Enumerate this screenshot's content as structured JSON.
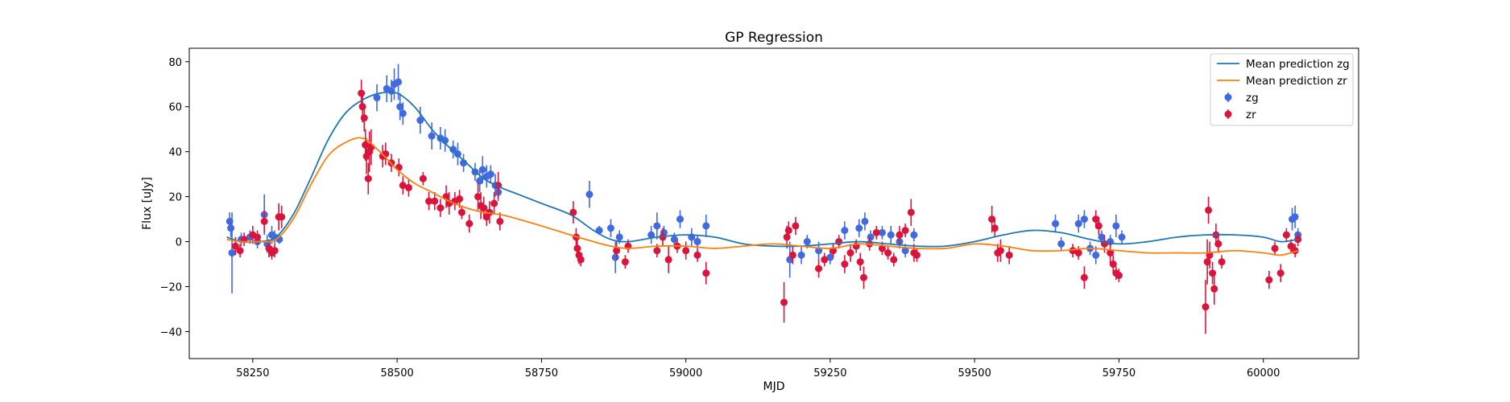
{
  "chart_data": {
    "type": "scatter",
    "title": "GP Regression",
    "xlabel": "MJD",
    "ylabel": "Flux [uJy]",
    "xlim": [
      58140,
      60165
    ],
    "ylim": [
      -52,
      86
    ],
    "xticks": [
      58250,
      58500,
      58750,
      59000,
      59250,
      59500,
      59750,
      60000
    ],
    "yticks": [
      -40,
      -20,
      0,
      20,
      40,
      60,
      80
    ],
    "grid": false,
    "legend_position": "top-right",
    "lines": [
      {
        "name": "Mean prediction zg",
        "color": "#1f77b4",
        "x": [
          58205,
          58230,
          58260,
          58290,
          58320,
          58350,
          58380,
          58410,
          58440,
          58470,
          58500,
          58530,
          58560,
          58590,
          58620,
          58650,
          58680,
          58710,
          58750,
          58800,
          58840,
          58870,
          58900,
          58950,
          59000,
          59050,
          59100,
          59150,
          59200,
          59250,
          59300,
          59350,
          59400,
          59450,
          59500,
          59550,
          59600,
          59650,
          59700,
          59750,
          59800,
          59850,
          59900,
          59950,
          60000,
          60030,
          60060
        ],
        "y": [
          2,
          0,
          0,
          2,
          12,
          28,
          45,
          57,
          63,
          66,
          66,
          60,
          50,
          42,
          35,
          28,
          24,
          21,
          17,
          12,
          5,
          1,
          0,
          2,
          3,
          2,
          -1,
          -2,
          -2,
          -1,
          0,
          -1,
          -2,
          -2,
          0,
          3,
          5,
          4,
          1,
          -1,
          0,
          2,
          3,
          3,
          2,
          0,
          1
        ]
      },
      {
        "name": "Mean prediction zr",
        "color": "#ff7f0e",
        "x": [
          58205,
          58230,
          58260,
          58290,
          58320,
          58350,
          58380,
          58410,
          58440,
          58470,
          58500,
          58530,
          58560,
          58590,
          58620,
          58650,
          58680,
          58710,
          58750,
          58800,
          58840,
          58870,
          58900,
          58950,
          59000,
          59050,
          59100,
          59150,
          59200,
          59250,
          59300,
          59350,
          59400,
          59450,
          59500,
          59550,
          59600,
          59650,
          59700,
          59750,
          59800,
          59850,
          59900,
          59950,
          60000,
          60030,
          60060
        ],
        "y": [
          1,
          0,
          0,
          1,
          10,
          25,
          38,
          44,
          46,
          40,
          32,
          26,
          22,
          18,
          15,
          13,
          12,
          10,
          7,
          3,
          0,
          -2,
          -3,
          -2,
          -2,
          -3,
          -2,
          -1,
          -2,
          -3,
          -1,
          -2,
          -3,
          -3,
          -1,
          -2,
          -4,
          -4,
          -3,
          -4,
          -5,
          -5,
          -5,
          -4,
          -5,
          -6,
          -4
        ]
      }
    ],
    "series": [
      {
        "name": "zg",
        "color": "#4169e1",
        "points": [
          [
            58210,
            9,
            4
          ],
          [
            58212,
            6,
            4
          ],
          [
            58214,
            -5,
            18
          ],
          [
            58230,
            1,
            3
          ],
          [
            58245,
            2,
            3
          ],
          [
            58258,
            0,
            3
          ],
          [
            58270,
            12,
            9
          ],
          [
            58275,
            -1,
            4
          ],
          [
            58283,
            3,
            4
          ],
          [
            58288,
            2,
            3
          ],
          [
            58296,
            1,
            2
          ],
          [
            58465,
            64,
            6
          ],
          [
            58482,
            68,
            6
          ],
          [
            58490,
            67,
            5
          ],
          [
            58495,
            70,
            7
          ],
          [
            58502,
            71,
            8
          ],
          [
            58505,
            60,
            6
          ],
          [
            58510,
            57,
            5
          ],
          [
            58540,
            54,
            6
          ],
          [
            58560,
            47,
            6
          ],
          [
            58575,
            46,
            5
          ],
          [
            58583,
            45,
            5
          ],
          [
            58597,
            41,
            4
          ],
          [
            58605,
            39,
            5
          ],
          [
            58615,
            35,
            4
          ],
          [
            58635,
            31,
            4
          ],
          [
            58643,
            27,
            5
          ],
          [
            58648,
            32,
            6
          ],
          [
            58655,
            29,
            5
          ],
          [
            58662,
            30,
            4
          ],
          [
            58670,
            25,
            5
          ],
          [
            58675,
            22,
            4
          ],
          [
            58833,
            21,
            6
          ],
          [
            58850,
            5,
            2
          ],
          [
            58870,
            6,
            4
          ],
          [
            58878,
            -7,
            7
          ],
          [
            58885,
            2,
            3
          ],
          [
            58940,
            3,
            4
          ],
          [
            58950,
            7,
            6
          ],
          [
            58962,
            4,
            3
          ],
          [
            58980,
            1,
            3
          ],
          [
            58990,
            10,
            4
          ],
          [
            59010,
            2,
            4
          ],
          [
            59020,
            0,
            3
          ],
          [
            59035,
            7,
            5
          ],
          [
            59180,
            -8,
            8
          ],
          [
            59200,
            -6,
            4
          ],
          [
            59210,
            0,
            3
          ],
          [
            59230,
            -4,
            4
          ],
          [
            59250,
            -7,
            3
          ],
          [
            59275,
            5,
            4
          ],
          [
            59300,
            6,
            4
          ],
          [
            59310,
            9,
            4
          ],
          [
            59320,
            2,
            3
          ],
          [
            59340,
            4,
            3
          ],
          [
            59355,
            3,
            4
          ],
          [
            59370,
            0,
            3
          ],
          [
            59380,
            -4,
            3
          ],
          [
            59395,
            3,
            3
          ],
          [
            59640,
            8,
            4
          ],
          [
            59650,
            -1,
            3
          ],
          [
            59680,
            8,
            4
          ],
          [
            59690,
            10,
            4
          ],
          [
            59700,
            -3,
            3
          ],
          [
            59710,
            -6,
            4
          ],
          [
            59720,
            2,
            3
          ],
          [
            59735,
            0,
            3
          ],
          [
            59745,
            7,
            5
          ],
          [
            59755,
            2,
            3
          ],
          [
            60050,
            10,
            5
          ],
          [
            60055,
            11,
            5
          ],
          [
            60060,
            3,
            3
          ]
        ]
      },
      {
        "name": "zr",
        "color": "#dc143c",
        "points": [
          [
            58220,
            -2,
            4
          ],
          [
            58228,
            -4,
            3
          ],
          [
            58235,
            1,
            3
          ],
          [
            58250,
            3,
            4
          ],
          [
            58258,
            2,
            3
          ],
          [
            58270,
            9,
            5
          ],
          [
            58278,
            -3,
            4
          ],
          [
            58283,
            -5,
            3
          ],
          [
            58288,
            -4,
            3
          ],
          [
            58295,
            11,
            6
          ],
          [
            58300,
            11,
            5
          ],
          [
            58438,
            66,
            6
          ],
          [
            58440,
            60,
            7
          ],
          [
            58443,
            55,
            6
          ],
          [
            58445,
            43,
            7
          ],
          [
            58447,
            38,
            8
          ],
          [
            58450,
            28,
            7
          ],
          [
            58452,
            40,
            9
          ],
          [
            58455,
            42,
            8
          ],
          [
            58475,
            38,
            5
          ],
          [
            58480,
            39,
            5
          ],
          [
            58490,
            35,
            4
          ],
          [
            58503,
            33,
            4
          ],
          [
            58510,
            25,
            4
          ],
          [
            58520,
            24,
            4
          ],
          [
            58545,
            28,
            3
          ],
          [
            58555,
            18,
            4
          ],
          [
            58565,
            18,
            4
          ],
          [
            58575,
            15,
            4
          ],
          [
            58585,
            20,
            5
          ],
          [
            58590,
            17,
            5
          ],
          [
            58600,
            18,
            4
          ],
          [
            58608,
            19,
            4
          ],
          [
            58612,
            13,
            3
          ],
          [
            58625,
            8,
            4
          ],
          [
            58640,
            20,
            6
          ],
          [
            58645,
            16,
            6
          ],
          [
            58650,
            15,
            5
          ],
          [
            58655,
            11,
            4
          ],
          [
            58660,
            13,
            5
          ],
          [
            58668,
            17,
            5
          ],
          [
            58675,
            25,
            6
          ],
          [
            58678,
            9,
            4
          ],
          [
            58805,
            13,
            5
          ],
          [
            58810,
            2,
            4
          ],
          [
            58812,
            -3,
            4
          ],
          [
            58815,
            -6,
            4
          ],
          [
            58818,
            -8,
            3
          ],
          [
            58880,
            -4,
            4
          ],
          [
            58895,
            -9,
            3
          ],
          [
            58900,
            -2,
            3
          ],
          [
            58950,
            -4,
            3
          ],
          [
            58960,
            2,
            4
          ],
          [
            58970,
            -8,
            6
          ],
          [
            58985,
            -2,
            3
          ],
          [
            59000,
            -4,
            4
          ],
          [
            59020,
            -6,
            3
          ],
          [
            59035,
            -14,
            5
          ],
          [
            59170,
            -27,
            9
          ],
          [
            59175,
            2,
            5
          ],
          [
            59178,
            5,
            4
          ],
          [
            59185,
            -6,
            4
          ],
          [
            59190,
            7,
            4
          ],
          [
            59230,
            -12,
            4
          ],
          [
            59240,
            -8,
            3
          ],
          [
            59255,
            -4,
            3
          ],
          [
            59265,
            0,
            3
          ],
          [
            59275,
            -10,
            4
          ],
          [
            59285,
            -5,
            4
          ],
          [
            59295,
            -2,
            3
          ],
          [
            59302,
            -9,
            4
          ],
          [
            59308,
            -16,
            5
          ],
          [
            59318,
            -1,
            3
          ],
          [
            59330,
            4,
            3
          ],
          [
            59340,
            -3,
            3
          ],
          [
            59350,
            -5,
            3
          ],
          [
            59360,
            -8,
            3
          ],
          [
            59370,
            3,
            4
          ],
          [
            59380,
            5,
            3
          ],
          [
            59390,
            13,
            6
          ],
          [
            59395,
            -5,
            4
          ],
          [
            59400,
            -6,
            3
          ],
          [
            59530,
            10,
            6
          ],
          [
            59535,
            6,
            4
          ],
          [
            59540,
            -5,
            4
          ],
          [
            59545,
            -4,
            5
          ],
          [
            59560,
            -6,
            4
          ],
          [
            59670,
            -4,
            3
          ],
          [
            59680,
            -5,
            3
          ],
          [
            59690,
            -16,
            5
          ],
          [
            59710,
            10,
            4
          ],
          [
            59715,
            7,
            4
          ],
          [
            59725,
            -1,
            4
          ],
          [
            59735,
            -5,
            5
          ],
          [
            59740,
            -10,
            4
          ],
          [
            59745,
            -14,
            3
          ],
          [
            59750,
            -15,
            3
          ],
          [
            59900,
            -29,
            12
          ],
          [
            59903,
            -9,
            10
          ],
          [
            59905,
            14,
            6
          ],
          [
            59907,
            -6,
            6
          ],
          [
            59912,
            -14,
            5
          ],
          [
            59915,
            -21,
            7
          ],
          [
            59918,
            3,
            5
          ],
          [
            59922,
            -1,
            4
          ],
          [
            59928,
            -9,
            3
          ],
          [
            60010,
            -17,
            4
          ],
          [
            60020,
            -3,
            3
          ],
          [
            60030,
            -14,
            4
          ],
          [
            60040,
            3,
            3
          ],
          [
            60048,
            -2,
            3
          ],
          [
            60055,
            -4,
            3
          ],
          [
            60060,
            1,
            3
          ]
        ]
      }
    ]
  }
}
